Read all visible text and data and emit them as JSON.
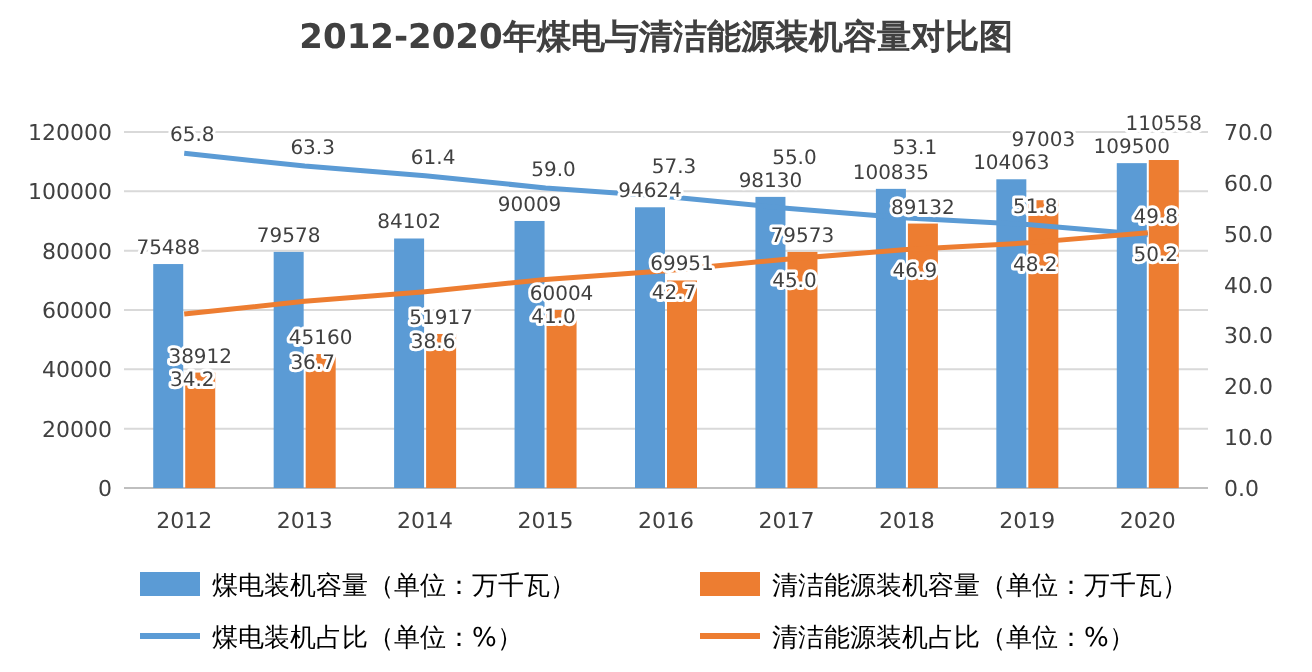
{
  "chart_data": {
    "type": "bar",
    "title": "2012-2020年煤电与清洁能源装机容量对比图",
    "categories": [
      "2012",
      "2013",
      "2014",
      "2015",
      "2016",
      "2017",
      "2018",
      "2019",
      "2020"
    ],
    "series": [
      {
        "name": "煤电装机容量（单位：万千瓦）",
        "color": "#5b9bd5",
        "values": [
          75488,
          79578,
          84102,
          90009,
          94624,
          98130,
          100835,
          104063,
          109500
        ]
      },
      {
        "name": "清洁能源装机容量（单位：万千瓦）",
        "color": "#ed7d31",
        "values": [
          38912,
          45160,
          51917,
          60004,
          69951,
          79573,
          89132,
          97003,
          110558
        ]
      },
      {
        "name": "煤电装机占比（单位：%）",
        "type": "line",
        "axis": "y2",
        "color": "#5b9bd5",
        "values": [
          65.8,
          63.3,
          61.4,
          59.0,
          57.3,
          55.0,
          53.1,
          51.8,
          49.8
        ],
        "value_labels": [
          "65.8",
          "63.3",
          "61.4",
          "59.0",
          "57.3",
          "55.0",
          "53.1",
          "51.8",
          "49.8"
        ]
      },
      {
        "name": "清洁能源装机占比（单位：%）",
        "type": "line",
        "axis": "y2",
        "color": "#ed7d31",
        "values": [
          34.2,
          36.7,
          38.6,
          41.0,
          42.7,
          45.0,
          46.9,
          48.2,
          50.2
        ],
        "value_labels": [
          "34.2",
          "36.7",
          "38.6",
          "41.0",
          "42.7",
          "45.0",
          "46.9",
          "48.2",
          "50.2"
        ]
      }
    ],
    "ylim": [
      0,
      120000
    ],
    "yticks": [
      0,
      20000,
      40000,
      60000,
      80000,
      100000,
      120000
    ],
    "y2lim": [
      0,
      70
    ],
    "y2ticks": [
      {
        "value": 0,
        "label": "0.0"
      },
      {
        "value": 10,
        "label": "10.0"
      },
      {
        "value": 20,
        "label": "20.0"
      },
      {
        "value": 30,
        "label": "30.0"
      },
      {
        "value": 40,
        "label": "40.0"
      },
      {
        "value": 50,
        "label": "50.0"
      },
      {
        "value": 60,
        "label": "60.0"
      },
      {
        "value": 70,
        "label": "70.0"
      }
    ],
    "grid": "y",
    "legend": "bottom",
    "data_labels": true,
    "marker": "none"
  }
}
